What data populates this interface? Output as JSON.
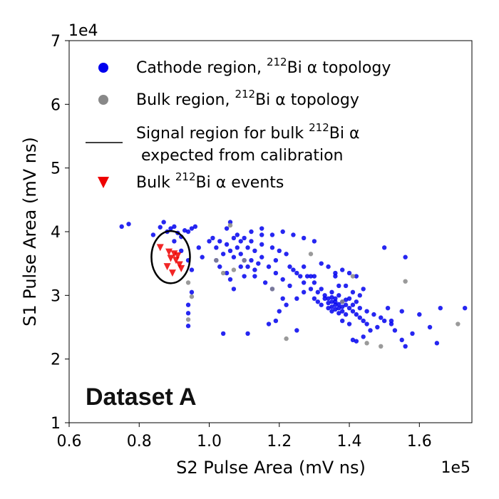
{
  "chart_data": {
    "type": "scatter",
    "xlabel": "S2 Pulse Area (mV ns)",
    "ylabel": "S1 Pulse Area (mV ns)",
    "x_multiplier": "1e5",
    "y_multiplier": "1e4",
    "xlim": [
      0.6,
      1.75
    ],
    "ylim": [
      1,
      7
    ],
    "x_ticks": [
      "0.6",
      "0.8",
      "1.0",
      "1.2",
      "1.4",
      "1.6"
    ],
    "y_ticks": [
      "1",
      "2",
      "3",
      "4",
      "5",
      "6",
      "7"
    ],
    "annotation": "Dataset A",
    "legend_position": "top-left",
    "colors": {
      "cathode": "#0000ee",
      "bulk": "#888888",
      "signal": "#000000",
      "events": "#ee0000"
    },
    "signal_region": {
      "cx": 0.89,
      "cy": 3.6,
      "rx": 0.055,
      "ry": 0.41
    },
    "series": [
      {
        "name": "Cathode region, 212Bi α topology",
        "label_main": "Cathode region, ",
        "label_sup": "212",
        "label_rest": "Bi α topology",
        "marker": "circle",
        "color": "#0000ee",
        "points": [
          [
            0.75,
            4.08
          ],
          [
            0.77,
            4.12
          ],
          [
            0.84,
            3.95
          ],
          [
            0.86,
            4.07
          ],
          [
            0.87,
            4.15
          ],
          [
            0.88,
            4.0
          ],
          [
            0.89,
            4.05
          ],
          [
            0.9,
            4.08
          ],
          [
            0.91,
            3.98
          ],
          [
            0.92,
            3.92
          ],
          [
            0.93,
            4.02
          ],
          [
            0.94,
            4.0
          ],
          [
            0.95,
            4.05
          ],
          [
            0.96,
            4.08
          ],
          [
            0.9,
            3.85
          ],
          [
            0.92,
            3.7
          ],
          [
            0.94,
            3.55
          ],
          [
            0.95,
            3.4
          ],
          [
            0.95,
            3.05
          ],
          [
            0.94,
            2.85
          ],
          [
            0.94,
            2.72
          ],
          [
            0.94,
            2.52
          ],
          [
            0.97,
            3.75
          ],
          [
            0.98,
            3.6
          ],
          [
            1.0,
            3.85
          ],
          [
            1.01,
            3.9
          ],
          [
            1.02,
            3.75
          ],
          [
            1.03,
            3.85
          ],
          [
            1.04,
            3.65
          ],
          [
            1.05,
            3.8
          ],
          [
            1.06,
            3.7
          ],
          [
            1.07,
            3.6
          ],
          [
            1.08,
            3.75
          ],
          [
            1.09,
            3.65
          ],
          [
            1.1,
            3.55
          ],
          [
            1.11,
            3.45
          ],
          [
            1.12,
            3.55
          ],
          [
            1.13,
            3.4
          ],
          [
            1.14,
            3.5
          ],
          [
            1.05,
            4.05
          ],
          [
            1.06,
            4.15
          ],
          [
            1.07,
            3.9
          ],
          [
            1.08,
            3.95
          ],
          [
            1.1,
            3.9
          ],
          [
            1.12,
            3.85
          ],
          [
            1.15,
            3.8
          ],
          [
            1.18,
            3.75
          ],
          [
            1.2,
            3.7
          ],
          [
            1.22,
            3.65
          ],
          [
            1.15,
            3.6
          ],
          [
            1.17,
            3.45
          ],
          [
            1.19,
            3.35
          ],
          [
            1.21,
            3.25
          ],
          [
            1.23,
            3.15
          ],
          [
            1.24,
            3.4
          ],
          [
            1.26,
            3.3
          ],
          [
            1.27,
            3.2
          ],
          [
            1.28,
            3.3
          ],
          [
            1.29,
            3.1
          ],
          [
            1.3,
            3.2
          ],
          [
            1.31,
            3.05
          ],
          [
            1.32,
            3.1
          ],
          [
            1.33,
            3.0
          ],
          [
            1.34,
            2.95
          ],
          [
            1.35,
            2.9
          ],
          [
            1.36,
            2.85
          ],
          [
            1.37,
            2.8
          ],
          [
            1.38,
            2.75
          ],
          [
            1.39,
            2.7
          ],
          [
            1.3,
            2.95
          ],
          [
            1.31,
            2.9
          ],
          [
            1.32,
            2.85
          ],
          [
            1.33,
            2.95
          ],
          [
            1.34,
            2.8
          ],
          [
            1.35,
            2.75
          ],
          [
            1.36,
            2.95
          ],
          [
            1.37,
            3.0
          ],
          [
            1.38,
            2.9
          ],
          [
            1.39,
            2.85
          ],
          [
            1.4,
            2.8
          ],
          [
            1.41,
            2.75
          ],
          [
            1.42,
            2.7
          ],
          [
            1.43,
            2.65
          ],
          [
            1.44,
            2.6
          ],
          [
            1.34,
            2.88
          ],
          [
            1.35,
            2.82
          ],
          [
            1.36,
            2.78
          ],
          [
            1.37,
            2.86
          ],
          [
            1.38,
            2.82
          ],
          [
            1.36,
            2.9
          ],
          [
            1.35,
            2.97
          ],
          [
            1.37,
            2.72
          ],
          [
            1.39,
            2.93
          ],
          [
            1.4,
            2.95
          ],
          [
            1.41,
            2.85
          ],
          [
            1.42,
            2.9
          ],
          [
            1.43,
            2.8
          ],
          [
            1.38,
            2.6
          ],
          [
            1.4,
            2.55
          ],
          [
            1.41,
            2.3
          ],
          [
            1.42,
            2.28
          ],
          [
            1.44,
            2.35
          ],
          [
            1.46,
            2.45
          ],
          [
            1.48,
            2.5
          ],
          [
            1.5,
            2.6
          ],
          [
            1.52,
            2.55
          ],
          [
            1.45,
            2.75
          ],
          [
            1.47,
            2.7
          ],
          [
            1.49,
            2.65
          ],
          [
            1.51,
            2.8
          ],
          [
            1.53,
            2.45
          ],
          [
            1.55,
            2.3
          ],
          [
            1.56,
            2.2
          ],
          [
            1.58,
            2.4
          ],
          [
            1.38,
            3.4
          ],
          [
            1.4,
            3.35
          ],
          [
            1.42,
            3.3
          ],
          [
            1.39,
            3.15
          ],
          [
            1.41,
            3.05
          ],
          [
            1.43,
            3.0
          ],
          [
            1.44,
            3.1
          ],
          [
            1.36,
            3.3
          ],
          [
            1.37,
            3.15
          ],
          [
            1.5,
            3.75
          ],
          [
            1.56,
            3.6
          ],
          [
            1.6,
            2.7
          ],
          [
            1.63,
            2.5
          ],
          [
            1.66,
            2.8
          ],
          [
            1.73,
            2.8
          ],
          [
            1.65,
            2.25
          ],
          [
            1.55,
            2.75
          ],
          [
            1.52,
            2.6
          ],
          [
            1.45,
            2.55
          ],
          [
            1.35,
            3.05
          ],
          [
            1.29,
            3.3
          ],
          [
            1.27,
            3.05
          ],
          [
            1.25,
            2.95
          ],
          [
            1.22,
            2.85
          ],
          [
            1.2,
            2.75
          ],
          [
            1.19,
            2.6
          ],
          [
            1.17,
            2.55
          ],
          [
            1.25,
            2.45
          ],
          [
            1.11,
            2.4
          ],
          [
            1.04,
            2.4
          ],
          [
            1.02,
            3.55
          ],
          [
            1.03,
            3.45
          ],
          [
            1.05,
            3.35
          ],
          [
            1.06,
            3.25
          ],
          [
            1.07,
            3.1
          ],
          [
            1.09,
            3.45
          ],
          [
            1.1,
            3.3
          ],
          [
            1.13,
            3.3
          ],
          [
            1.16,
            3.2
          ],
          [
            1.18,
            3.1
          ],
          [
            1.21,
            2.95
          ],
          [
            1.23,
            3.45
          ],
          [
            1.25,
            3.35
          ],
          [
            1.27,
            3.45
          ],
          [
            1.3,
            3.3
          ],
          [
            1.12,
            4.0
          ],
          [
            1.15,
            4.05
          ],
          [
            1.18,
            3.95
          ],
          [
            1.21,
            4.0
          ],
          [
            1.24,
            3.95
          ],
          [
            1.27,
            3.9
          ],
          [
            1.3,
            3.85
          ],
          [
            1.32,
            3.5
          ],
          [
            1.34,
            3.45
          ],
          [
            1.36,
            3.35
          ],
          [
            1.09,
            3.85
          ],
          [
            1.11,
            3.75
          ],
          [
            1.13,
            3.7
          ],
          [
            1.15,
            3.95
          ],
          [
            1.19,
            3.55
          ]
        ]
      },
      {
        "name": "Bulk region, 212Bi α topology",
        "label_main": "Bulk region, ",
        "label_sup": "212",
        "label_rest": "Bi α topology",
        "marker": "circle",
        "color": "#888888",
        "points": [
          [
            0.94,
            3.2
          ],
          [
            0.95,
            2.98
          ],
          [
            0.94,
            2.62
          ],
          [
            1.02,
            3.55
          ],
          [
            1.04,
            3.35
          ],
          [
            1.06,
            4.1
          ],
          [
            1.07,
            3.4
          ],
          [
            1.1,
            3.55
          ],
          [
            1.22,
            2.32
          ],
          [
            1.29,
            3.65
          ],
          [
            1.38,
            2.9
          ],
          [
            1.41,
            3.3
          ],
          [
            1.45,
            2.25
          ],
          [
            1.49,
            2.2
          ],
          [
            1.56,
            3.22
          ],
          [
            1.71,
            2.55
          ],
          [
            1.18,
            3.1
          ]
        ]
      },
      {
        "name": "Bulk 212Bi α events",
        "label_main": "Bulk ",
        "label_sup": "212",
        "label_rest": "Bi α events",
        "marker": "triangle-down",
        "color": "#ee0000",
        "points": [
          [
            0.86,
            3.75
          ],
          [
            0.88,
            3.45
          ],
          [
            0.885,
            3.68
          ],
          [
            0.89,
            3.58
          ],
          [
            0.895,
            3.35
          ],
          [
            0.9,
            3.65
          ],
          [
            0.905,
            3.55
          ],
          [
            0.91,
            3.62
          ],
          [
            0.915,
            3.48
          ],
          [
            0.92,
            3.42
          ]
        ]
      }
    ],
    "signal_label_line1_main": "Signal region for bulk ",
    "signal_label_sup": "212",
    "signal_label_line1_rest": "Bi α",
    "signal_label_line2": " expected from calibration"
  }
}
